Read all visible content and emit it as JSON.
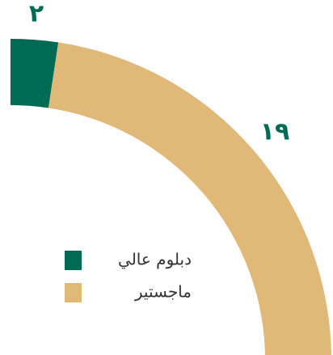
{
  "chart_data": {
    "type": "donut",
    "categories": [
      "دبلوم عالي",
      "ماجستير"
    ],
    "values": [
      2,
      19
    ],
    "value_labels": [
      "٢",
      "١٩"
    ],
    "colors": [
      "#006b54",
      "#e0b877"
    ]
  }
}
